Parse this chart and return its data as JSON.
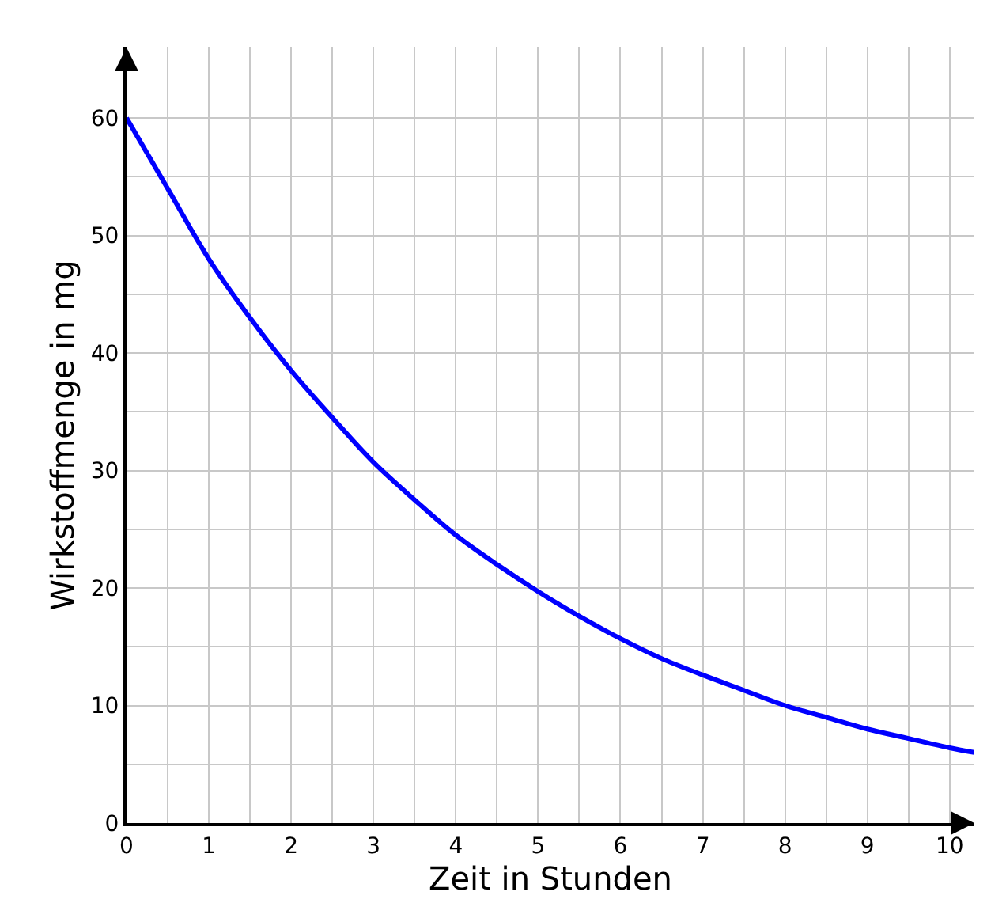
{
  "chart_data": {
    "type": "line",
    "xlabel": "Zeit in Stunden",
    "ylabel": "Wirkstoffmenge in mg",
    "x": [
      0,
      0.5,
      1,
      1.5,
      2,
      2.5,
      3,
      3.5,
      4,
      4.5,
      5,
      5.5,
      6,
      6.5,
      7,
      7.5,
      8,
      8.5,
      9,
      9.5,
      10,
      10.3
    ],
    "series": [
      {
        "color": "#0000ff",
        "values": [
          60,
          54,
          48,
          43,
          38.5,
          34.5,
          30.7,
          27.5,
          24.5,
          22,
          19.7,
          17.6,
          15.7,
          14,
          12.6,
          11.3,
          10,
          9,
          8,
          7.2,
          6.4,
          6
        ]
      }
    ],
    "xlim": [
      0,
      10.3
    ],
    "ylim": [
      0,
      66
    ],
    "xticks": [
      0,
      {
        "value": 0.5,
        "label": null
      },
      1,
      {
        "value": 1.5,
        "label": null
      },
      2,
      {
        "value": 2.5,
        "label": null
      },
      3,
      {
        "value": 3.5,
        "label": null
      },
      4,
      {
        "value": 4.5,
        "label": null
      },
      5,
      {
        "value": 5.5,
        "label": null
      },
      6,
      {
        "value": 6.5,
        "label": null
      },
      7,
      {
        "value": 7.5,
        "label": null
      },
      8,
      {
        "value": 8.5,
        "label": null
      },
      9,
      {
        "value": 9.5,
        "label": null
      },
      10
    ],
    "yticks": [
      0,
      {
        "value": 5,
        "label": null
      },
      10,
      {
        "value": 15,
        "label": null
      },
      20,
      {
        "value": 25,
        "label": null
      },
      30,
      {
        "value": 35,
        "label": null
      },
      40,
      {
        "value": 45,
        "label": null
      },
      50,
      {
        "value": 55,
        "label": null
      },
      60
    ],
    "grid": true,
    "marker": "none",
    "line_style": "solid"
  }
}
